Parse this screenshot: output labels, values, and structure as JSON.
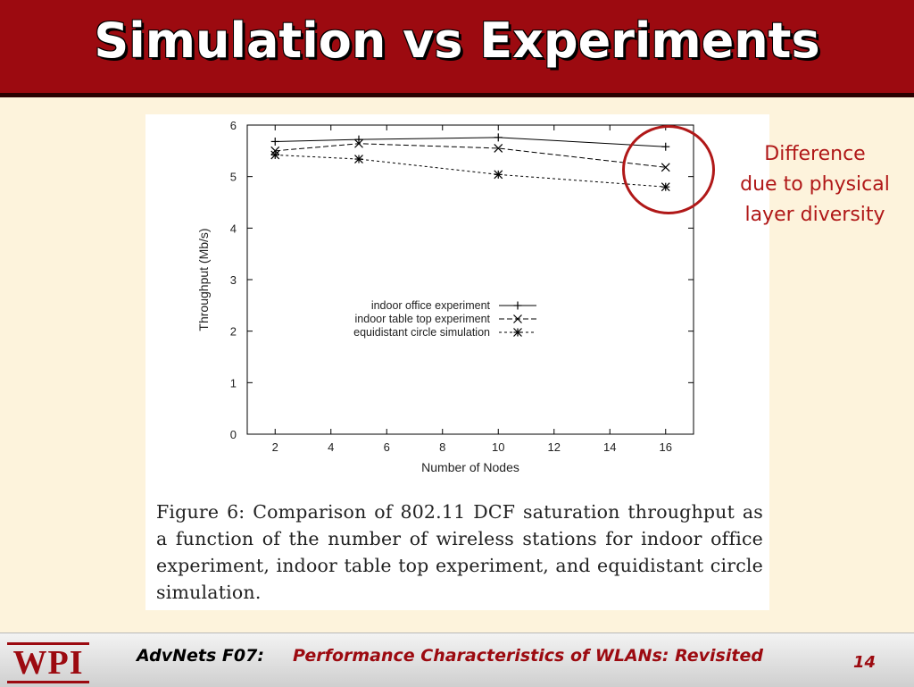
{
  "slide": {
    "title": "Simulation vs Experiments"
  },
  "annotation": {
    "lines": [
      "Difference",
      "due to physical",
      "layer diversity"
    ],
    "color": "#b01818"
  },
  "figure_caption": "Figure 6:  Comparison of 802.11 DCF saturation throughput as a function of the number of wireless stations for indoor office experiment, indoor table top experiment, and equidistant circle simulation.",
  "footer": {
    "logo": "WPI",
    "course": "AdvNets F07:",
    "topic": "Performance Characteristics of WLANs: Revisited",
    "page": "14"
  },
  "colors": {
    "title_bar": "#9c0a10",
    "background": "#fdf3dc",
    "accent_red": "#9c0a10"
  },
  "chart_data": {
    "type": "line",
    "xlabel": "Number of Nodes",
    "ylabel": "Throughput (Mb/s)",
    "xlim": [
      1,
      17
    ],
    "ylim": [
      0,
      6
    ],
    "xticks": [
      2,
      4,
      6,
      8,
      10,
      12,
      14,
      16
    ],
    "yticks": [
      0,
      1,
      2,
      3,
      4,
      5,
      6
    ],
    "grid": false,
    "legend_position": "center-right",
    "series": [
      {
        "name": "indoor office experiment",
        "marker": "+",
        "dash": "solid",
        "x": [
          2,
          5,
          10,
          16
        ],
        "y": [
          5.68,
          5.72,
          5.76,
          5.58
        ]
      },
      {
        "name": "indoor table top experiment",
        "marker": "x",
        "dash": "dashed",
        "x": [
          2,
          5,
          10,
          16
        ],
        "y": [
          5.5,
          5.64,
          5.55,
          5.18
        ]
      },
      {
        "name": "equidistant circle simulation",
        "marker": "*",
        "dash": "dotted",
        "x": [
          2,
          5,
          10,
          16
        ],
        "y": [
          5.42,
          5.34,
          5.04,
          4.8
        ]
      }
    ]
  }
}
